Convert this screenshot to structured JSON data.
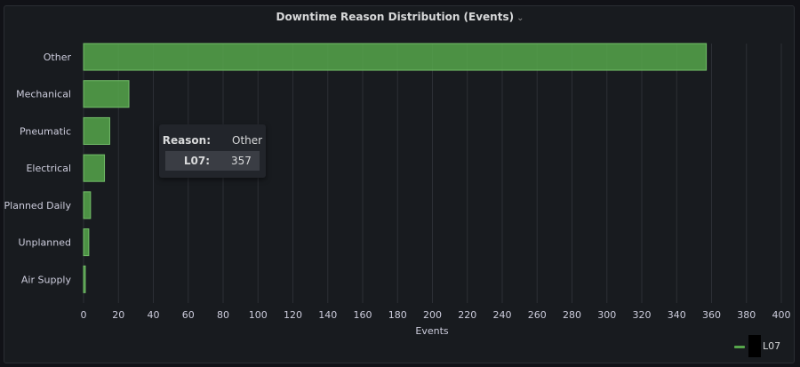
{
  "panel": {
    "title": "Downtime Reason Distribution (Events)",
    "title_menu_icon": "chevron-down-icon"
  },
  "tooltip": {
    "reason_key": "Reason:",
    "reason_value": "Other",
    "series_key": "L07:",
    "series_value": "357"
  },
  "legend": {
    "label": "L07",
    "color": "#56a64b"
  },
  "chart_data": {
    "type": "bar",
    "orientation": "horizontal",
    "categories": [
      "Other",
      "Mechanical",
      "Pneumatic",
      "Electrical",
      "Planned Daily",
      "Unplanned",
      "Air Supply"
    ],
    "series": [
      {
        "name": "L07",
        "values": [
          357,
          26,
          15,
          12,
          4,
          3,
          1
        ],
        "color": "#56a64b"
      }
    ],
    "xlabel": "Events",
    "ylabel": "",
    "xlim": [
      0,
      400
    ],
    "xticks": [
      "0",
      "20",
      "40",
      "60",
      "80",
      "100",
      "120",
      "140",
      "160",
      "180",
      "200",
      "220",
      "240",
      "260",
      "280",
      "300",
      "320",
      "340",
      "360",
      "380",
      "400"
    ],
    "grid": true,
    "legend_position": "bottom-right"
  }
}
